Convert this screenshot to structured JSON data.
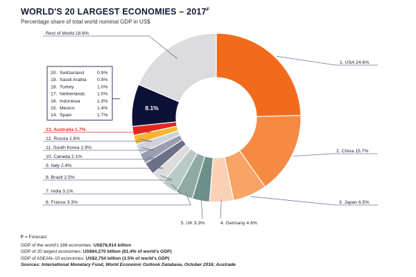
{
  "header": {
    "title": "WORLD'S 20 LARGEST ECONOMIES – 2017",
    "title_suffix": "F",
    "subtitle": "Percentage share of total world nominal GDP in US$"
  },
  "chart_data": {
    "type": "pie",
    "variant": "donut",
    "title": "WORLD'S 20 LARGEST ECONOMIES – 2017F",
    "unit": "% of world nominal GDP",
    "slices": [
      {
        "label": "1. USA 24.6%",
        "name": "USA",
        "value": 24.6,
        "color": "#f26b1d"
      },
      {
        "label": "2. China 15.7%",
        "name": "China",
        "value": 15.7,
        "color": "#f58a44"
      },
      {
        "label": "3. Japan 6.5%",
        "name": "Japan",
        "value": 6.5,
        "color": "#f8a466"
      },
      {
        "label": "4. Germany 4.6%",
        "name": "Germany",
        "value": 4.6,
        "color": "#fbd1b5"
      },
      {
        "label": "5. UK 3.3%",
        "name": "UK",
        "value": 3.3,
        "color": "#6d8f8a"
      },
      {
        "label": "6. France 3.3%",
        "name": "France",
        "value": 3.3,
        "color": "#8fa9a5"
      },
      {
        "label": "7. India 3.1%",
        "name": "India",
        "value": 3.1,
        "color": "#b8c9c6"
      },
      {
        "label": "8. Brazil 2.5%",
        "name": "Brazil",
        "value": 2.5,
        "color": "#dcdcdc"
      },
      {
        "label": "9. Italy 2.4%",
        "name": "Italy",
        "value": 2.4,
        "color": "#6c7087"
      },
      {
        "label": "10. Canada 2.1%",
        "name": "Canada",
        "value": 2.1,
        "color": "#9a9dac"
      },
      {
        "label": "11. South Korea 1.9%",
        "name": "South Korea",
        "value": 1.9,
        "color": "#cfd1dc"
      },
      {
        "label": "12. Russia 1.8%",
        "name": "Russia",
        "value": 1.8,
        "color": "#f7b731"
      },
      {
        "label": "13. Australia 1.7%",
        "name": "Australia",
        "value": 1.7,
        "color": "#e2271e",
        "highlight": true
      },
      {
        "label": "8.1%",
        "name": "Countries 14–20",
        "value": 8.1,
        "color": "#0d1136"
      },
      {
        "label": "Rest of World 18.6%",
        "name": "Rest of World",
        "value": 18.6,
        "color": "#dcdcdf"
      }
    ],
    "group_box": {
      "value_label": "8.1%",
      "items": [
        {
          "rank": "20.",
          "name": "Switzerland",
          "value": "0.9%"
        },
        {
          "rank": "19.",
          "name": "Saudi Arabia",
          "value": "0.9%"
        },
        {
          "rank": "18.",
          "name": "Turkey",
          "value": "1.0%"
        },
        {
          "rank": "17.",
          "name": "Netherlands",
          "value": "1.0%"
        },
        {
          "rank": "16.",
          "name": "Indonesia",
          "value": "1.3%"
        },
        {
          "rank": "15.",
          "name": "Mexico",
          "value": "1.4%"
        },
        {
          "rank": "14.",
          "name": "Spain",
          "value": "1.7%"
        }
      ]
    }
  },
  "footer": {
    "forecast_key": "F",
    "forecast_text": " = Forecast",
    "line1_text": "GDP of the world's 188 economies: ",
    "line1_value": "US$78,914 billion",
    "line2_text": "GDP of 20 largest economies: ",
    "line2_value": "US$64,270 billion (81.4% of world's GDP)",
    "line3_text": "GDP of ASEAN–10 economies: ",
    "line3_value": "US$2,754 billion (3.5% of world's GDP)",
    "source": "Sources: International Monetary Fund, World Economic Outlook Database, October 2016; Austrade"
  },
  "colors": {
    "title": "#141733",
    "highlight_text": "#e2271e",
    "leader_line": "#6b7090",
    "box_border": "#1b1f4a"
  }
}
